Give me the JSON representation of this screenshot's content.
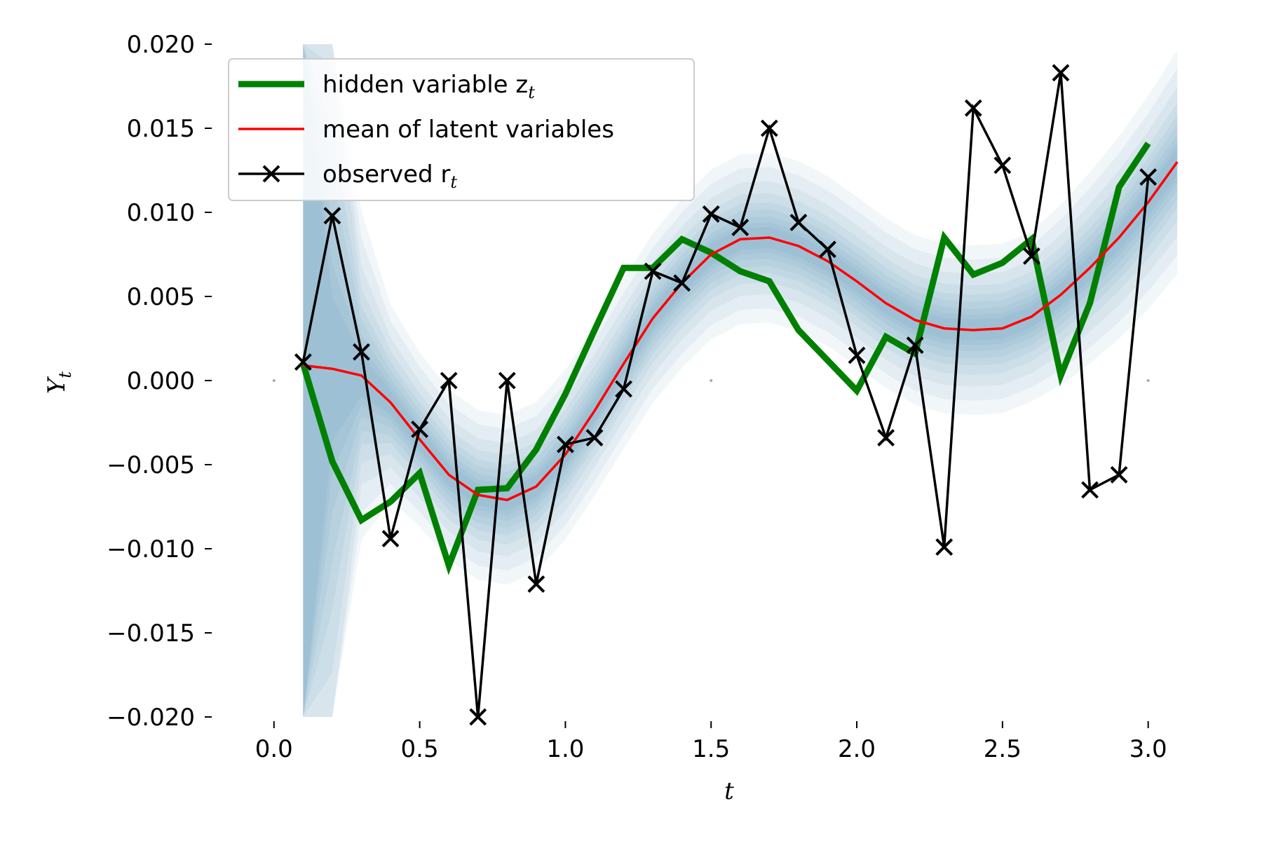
{
  "chart_data": {
    "type": "line",
    "xlabel": "t",
    "ylabel": "Y",
    "ylabel_sub": "t",
    "xlim": [
      -0.05,
      3.15
    ],
    "ylim": [
      -0.02,
      0.02
    ],
    "x_ticks": [
      0.0,
      0.5,
      1.0,
      1.5,
      2.0,
      2.5,
      3.0
    ],
    "x_tick_labels": [
      "0.0",
      "0.5",
      "1.0",
      "1.5",
      "2.0",
      "2.5",
      "3.0"
    ],
    "y_ticks": [
      0.02,
      0.015,
      0.01,
      0.005,
      0.0,
      -0.005,
      -0.01,
      -0.015,
      -0.02
    ],
    "y_tick_labels": [
      "0.020",
      "0.015",
      "0.010",
      "0.005",
      "0.000",
      "−0.005",
      "−0.010",
      "−0.015",
      "−0.020"
    ],
    "legend_position": "top-left",
    "band_color": "#4682b4",
    "series": [
      {
        "name": "hidden variable z",
        "name_sub": "t",
        "color": "#008000",
        "style": "thick-line",
        "x": [
          0.1,
          0.2,
          0.3,
          0.4,
          0.5,
          0.6,
          0.7,
          0.8,
          0.9,
          1.0,
          1.1,
          1.2,
          1.3,
          1.4,
          1.5,
          1.6,
          1.7,
          1.8,
          1.9,
          2.0,
          2.1,
          2.2,
          2.3,
          2.4,
          2.5,
          2.6,
          2.7,
          2.8,
          2.9,
          3.0
        ],
        "y": [
          0.001,
          -0.0048,
          -0.0083,
          -0.0072,
          -0.0055,
          -0.011,
          -0.0065,
          -0.0064,
          -0.0041,
          -0.0008,
          0.003,
          0.0067,
          0.0067,
          0.0084,
          0.0076,
          0.0065,
          0.0059,
          0.003,
          0.0012,
          -0.0006,
          0.0026,
          0.0016,
          0.0085,
          0.0063,
          0.007,
          0.0084,
          0.0003,
          0.0046,
          0.0115,
          0.0141
        ]
      },
      {
        "name": "mean of latent variables",
        "color": "#ff0000",
        "style": "line",
        "x": [
          0.1,
          0.2,
          0.3,
          0.4,
          0.5,
          0.6,
          0.7,
          0.8,
          0.9,
          1.0,
          1.1,
          1.2,
          1.3,
          1.4,
          1.5,
          1.6,
          1.7,
          1.8,
          1.9,
          2.0,
          2.1,
          2.2,
          2.3,
          2.4,
          2.5,
          2.6,
          2.7,
          2.8,
          2.9,
          3.0,
          3.1
        ],
        "y": [
          0.0009,
          0.0007,
          0.0003,
          -0.0013,
          -0.0035,
          -0.0056,
          -0.0068,
          -0.0071,
          -0.0063,
          -0.0044,
          -0.0018,
          0.001,
          0.0037,
          0.0058,
          0.0075,
          0.0084,
          0.0085,
          0.008,
          0.0071,
          0.0059,
          0.0046,
          0.0036,
          0.0031,
          0.003,
          0.0031,
          0.0038,
          0.0051,
          0.0067,
          0.0085,
          0.0106,
          0.013
        ]
      },
      {
        "name": "observed r",
        "name_sub": "t",
        "color": "#000000",
        "style": "line-x-markers",
        "x": [
          0.1,
          0.2,
          0.3,
          0.4,
          0.5,
          0.6,
          0.7,
          0.8,
          0.9,
          1.0,
          1.1,
          1.2,
          1.3,
          1.4,
          1.5,
          1.6,
          1.7,
          1.8,
          1.9,
          2.0,
          2.1,
          2.2,
          2.3,
          2.4,
          2.5,
          2.6,
          2.7,
          2.8,
          2.9,
          3.0
        ],
        "y": [
          0.0011,
          0.0098,
          0.0017,
          -0.0094,
          -0.0029,
          0.0,
          -0.02,
          0.0,
          -0.0121,
          -0.0038,
          -0.0034,
          -0.0005,
          0.0065,
          0.0058,
          0.0099,
          0.0091,
          0.015,
          0.0094,
          0.0078,
          0.0015,
          -0.0034,
          0.0021,
          -0.0099,
          0.0162,
          0.0128,
          0.0074,
          0.0183,
          -0.0065,
          -0.0056,
          0.0121
        ]
      }
    ]
  }
}
